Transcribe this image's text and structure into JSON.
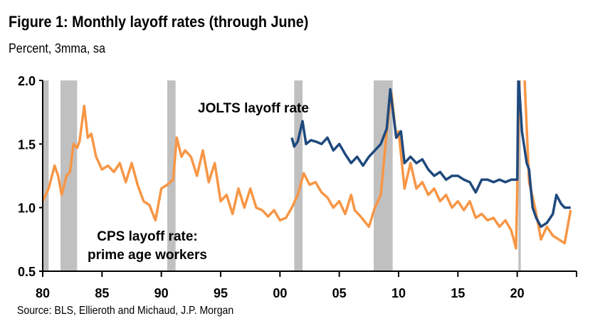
{
  "title": "Figure 1: Monthly layoff rates (through June)",
  "subtitle": "Percent, 3mma, sa",
  "source": "Source: BLS, Ellieroth and Michaud, J.P. Morgan",
  "chart_data": {
    "type": "line",
    "title": "Figure 1: Monthly layoff rates (through June)",
    "ylabel": "Percent, 3mma, sa",
    "xlim": [
      1980,
      2025
    ],
    "ylim": [
      0.5,
      2.0
    ],
    "yticks": [
      "0.5",
      "1.0",
      "1.5",
      "2.0"
    ],
    "yticks_values": [
      0.5,
      1.0,
      1.5,
      2.0
    ],
    "xticks": [
      "80",
      "85",
      "90",
      "95",
      "00",
      "05",
      "10",
      "15",
      "20"
    ],
    "xticks_values": [
      1980,
      1985,
      1990,
      1995,
      2000,
      2005,
      2010,
      2015,
      2020
    ],
    "grid": false,
    "recessions": [
      [
        1980.0,
        1980.5
      ],
      [
        1981.5,
        1982.9
      ],
      [
        1990.5,
        1991.2
      ],
      [
        2001.2,
        2001.9
      ],
      [
        2007.9,
        2009.5
      ],
      [
        2020.1,
        2020.3
      ]
    ],
    "recession_color": "#C0C0C0",
    "series": [
      {
        "name": "CPS layoff rate: prime age workers",
        "label_lines": [
          "CPS layoff rate:",
          "prime age workers"
        ],
        "color": "#F79646",
        "x": [
          1980.0,
          1980.5,
          1981.0,
          1981.3,
          1981.6,
          1982.0,
          1982.3,
          1982.6,
          1982.9,
          1983.1,
          1983.5,
          1983.8,
          1984.1,
          1984.5,
          1985.0,
          1985.5,
          1986.0,
          1986.5,
          1987.0,
          1987.5,
          1988.0,
          1988.5,
          1989.0,
          1989.5,
          1990.0,
          1990.5,
          1991.0,
          1991.3,
          1991.7,
          1992.0,
          1992.5,
          1993.0,
          1993.5,
          1994.0,
          1994.5,
          1995.0,
          1995.5,
          1996.0,
          1996.5,
          1997.0,
          1997.5,
          1998.0,
          1998.5,
          1999.0,
          1999.5,
          2000.0,
          2000.5,
          2001.0,
          2001.5,
          2002.0,
          2002.5,
          2003.0,
          2003.5,
          2004.0,
          2004.5,
          2005.0,
          2005.5,
          2006.0,
          2006.3,
          2006.8,
          2007.5,
          2008.0,
          2008.5,
          2009.0,
          2009.4,
          2009.8,
          2010.0,
          2010.5,
          2011.0,
          2011.5,
          2012.0,
          2012.5,
          2013.0,
          2013.5,
          2014.0,
          2014.5,
          2015.0,
          2015.5,
          2016.0,
          2016.5,
          2017.0,
          2017.5,
          2018.0,
          2018.5,
          2019.0,
          2019.5,
          2019.9,
          2020.2,
          2020.6,
          2021.0,
          2021.5,
          2022.0,
          2022.5,
          2023.0,
          2023.5,
          2024.0,
          2024.5
        ],
        "values": [
          1.05,
          1.15,
          1.33,
          1.25,
          1.1,
          1.25,
          1.28,
          1.5,
          1.47,
          1.52,
          1.8,
          1.55,
          1.58,
          1.4,
          1.3,
          1.33,
          1.28,
          1.35,
          1.2,
          1.35,
          1.18,
          1.05,
          1.02,
          0.9,
          1.15,
          1.18,
          1.22,
          1.55,
          1.4,
          1.45,
          1.4,
          1.25,
          1.45,
          1.2,
          1.35,
          1.05,
          1.1,
          0.95,
          1.15,
          1.0,
          1.15,
          1.0,
          0.98,
          0.93,
          0.98,
          0.9,
          0.92,
          1.0,
          1.1,
          1.27,
          1.18,
          1.2,
          1.12,
          1.08,
          1.0,
          1.05,
          0.95,
          1.1,
          0.98,
          0.93,
          0.85,
          1.0,
          1.1,
          1.6,
          1.9,
          1.55,
          1.6,
          1.15,
          1.35,
          1.15,
          1.2,
          1.1,
          1.15,
          1.05,
          1.1,
          1.0,
          1.05,
          0.98,
          1.05,
          0.92,
          0.95,
          0.9,
          0.92,
          0.85,
          0.9,
          0.82,
          0.68,
          2.05,
          2.05,
          1.2,
          1.0,
          0.75,
          0.85,
          0.78,
          0.75,
          0.72,
          0.98
        ]
      },
      {
        "name": "JOLTS layoff rate",
        "color": "#1F497D",
        "x": [
          2001.0,
          2001.2,
          2001.5,
          2001.9,
          2002.2,
          2002.6,
          2003.0,
          2003.5,
          2004.0,
          2004.5,
          2005.0,
          2005.5,
          2006.0,
          2006.5,
          2007.0,
          2007.5,
          2008.0,
          2008.5,
          2009.0,
          2009.3,
          2009.8,
          2010.2,
          2010.5,
          2011.0,
          2011.5,
          2012.0,
          2012.5,
          2013.0,
          2013.5,
          2014.0,
          2014.5,
          2015.0,
          2015.5,
          2016.0,
          2016.5,
          2017.0,
          2017.5,
          2018.0,
          2018.5,
          2019.0,
          2019.5,
          2020.0,
          2020.1,
          2020.4,
          2020.8,
          2021.0,
          2021.3,
          2021.6,
          2022.0,
          2022.5,
          2023.0,
          2023.3,
          2023.7,
          2024.0,
          2024.5
        ],
        "values": [
          1.55,
          1.48,
          1.52,
          1.68,
          1.5,
          1.53,
          1.52,
          1.5,
          1.55,
          1.45,
          1.5,
          1.42,
          1.35,
          1.4,
          1.33,
          1.4,
          1.45,
          1.5,
          1.62,
          1.93,
          1.55,
          1.6,
          1.35,
          1.4,
          1.35,
          1.38,
          1.3,
          1.25,
          1.28,
          1.22,
          1.25,
          1.25,
          1.22,
          1.2,
          1.12,
          1.22,
          1.22,
          1.2,
          1.22,
          1.2,
          1.22,
          1.22,
          2.05,
          1.6,
          1.35,
          1.3,
          1.0,
          0.92,
          0.85,
          0.88,
          0.95,
          1.1,
          1.03,
          1.0,
          1.0
        ]
      }
    ]
  }
}
